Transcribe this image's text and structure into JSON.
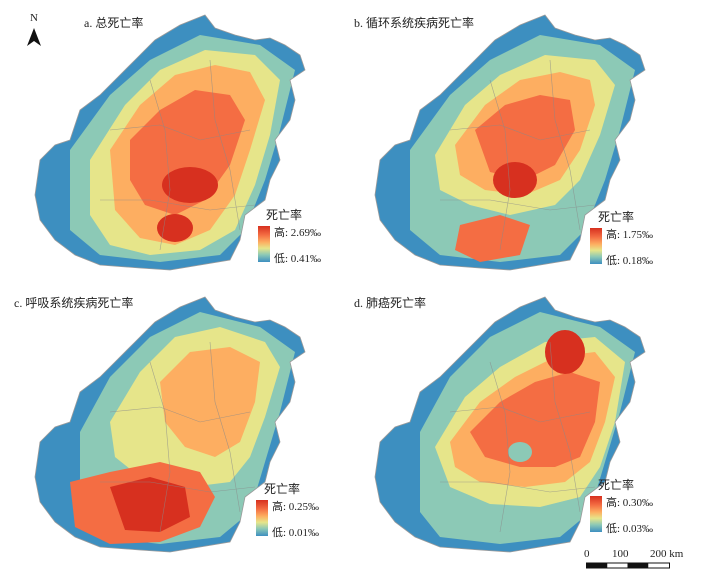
{
  "north_label": "N",
  "panels": [
    {
      "title": "a. 总死亡率",
      "legend_title": "死亡率",
      "high_label": "高: 2.69‰",
      "low_label": "低: 0.41‰"
    },
    {
      "title": "b. 循环系统疾病死亡率",
      "legend_title": "死亡率",
      "high_label": "高: 1.75‰",
      "low_label": "低: 0.18‰"
    },
    {
      "title": "c. 呼吸系统疾病死亡率",
      "legend_title": "死亡率",
      "high_label": "高: 0.25‰",
      "low_label": "低: 0.01‰"
    },
    {
      "title": "d. 肺癌死亡率",
      "legend_title": "死亡率",
      "high_label": "高: 0.30‰",
      "low_label": "低: 0.03‰"
    }
  ],
  "scale_bar": {
    "labels": [
      "0",
      "100",
      "200 km"
    ]
  },
  "colors": {
    "high": "#d7301f",
    "mid_high": "#f46d43",
    "mid": "#fdae61",
    "mid_low": "#e6e58a",
    "low_mid": "#8cc9b6",
    "low": "#3d8fc0"
  }
}
